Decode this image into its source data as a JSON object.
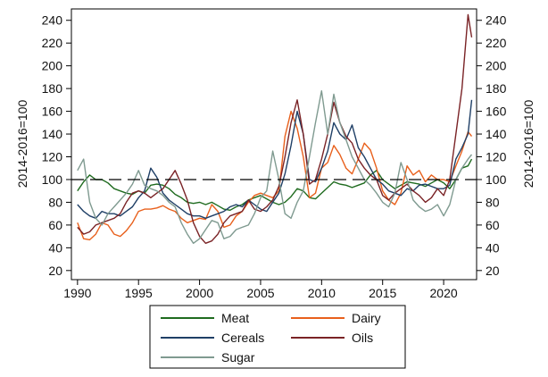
{
  "chart_data": {
    "type": "line",
    "ylabel_left": "2014-2016=100",
    "ylabel_right": "2014-2016=100",
    "xlim": [
      1989.5,
      2022.7
    ],
    "ylim": [
      12,
      250
    ],
    "x_ticks": [
      1990,
      1995,
      2000,
      2005,
      2010,
      2015,
      2020
    ],
    "x_tick_labels": [
      "1990",
      "1995",
      "2000",
      "2005",
      "2010",
      "2015",
      "2020"
    ],
    "y_ticks": [
      20,
      40,
      60,
      80,
      100,
      120,
      140,
      160,
      180,
      200,
      220,
      240
    ],
    "y_tick_labels": [
      "20",
      "40",
      "60",
      "80",
      "100",
      "120",
      "140",
      "160",
      "180",
      "200",
      "220",
      "240"
    ],
    "reference_line": {
      "y": 100,
      "style": "dashed"
    },
    "grid": false,
    "legend_position": "bottom",
    "series": [
      {
        "name": "Meat",
        "color": "#1f6b1f",
        "x": [
          1990,
          1990.5,
          1991,
          1991.5,
          1992,
          1992.5,
          1993,
          1993.5,
          1994,
          1994.5,
          1995,
          1995.5,
          1996,
          1996.5,
          1997,
          1997.5,
          1998,
          1998.5,
          1999,
          1999.5,
          2000,
          2000.5,
          2001,
          2001.5,
          2002,
          2002.5,
          2003,
          2003.5,
          2004,
          2004.5,
          2005,
          2005.5,
          2006,
          2006.5,
          2007,
          2007.5,
          2008,
          2008.5,
          2009,
          2009.5,
          2010,
          2010.5,
          2011,
          2011.5,
          2012,
          2012.5,
          2013,
          2013.5,
          2014,
          2014.5,
          2015,
          2015.5,
          2016,
          2016.5,
          2017,
          2017.5,
          2018,
          2018.5,
          2019,
          2019.5,
          2020,
          2020.5,
          2021,
          2021.5,
          2022,
          2022.3
        ],
        "y": [
          90,
          98,
          104,
          100,
          100,
          97,
          92,
          90,
          88,
          87,
          90,
          88,
          95,
          96,
          95,
          92,
          87,
          84,
          80,
          79,
          80,
          78,
          80,
          77,
          74,
          73,
          76,
          78,
          82,
          84,
          86,
          83,
          80,
          78,
          80,
          85,
          92,
          90,
          84,
          83,
          88,
          93,
          98,
          96,
          95,
          93,
          95,
          97,
          104,
          108,
          100,
          96,
          92,
          95,
          98,
          97,
          96,
          94,
          97,
          100,
          97,
          92,
          100,
          110,
          112,
          118
        ]
      },
      {
        "name": "Dairy",
        "color": "#e8601c",
        "x": [
          1990,
          1990.5,
          1991,
          1991.5,
          1992,
          1992.5,
          1993,
          1993.5,
          1994,
          1994.5,
          1995,
          1995.5,
          1996,
          1996.5,
          1997,
          1997.5,
          1998,
          1998.5,
          1999,
          1999.5,
          2000,
          2000.5,
          2001,
          2001.5,
          2002,
          2002.5,
          2003,
          2003.5,
          2004,
          2004.5,
          2005,
          2005.5,
          2006,
          2006.5,
          2007,
          2007.5,
          2008,
          2008.5,
          2009,
          2009.5,
          2010,
          2010.5,
          2011,
          2011.5,
          2012,
          2012.5,
          2013,
          2013.5,
          2014,
          2014.5,
          2015,
          2015.5,
          2016,
          2016.5,
          2017,
          2017.5,
          2018,
          2018.5,
          2019,
          2019.5,
          2020,
          2020.5,
          2021,
          2021.5,
          2022,
          2022.3
        ],
        "y": [
          62,
          48,
          47,
          52,
          62,
          60,
          52,
          50,
          55,
          62,
          72,
          74,
          74,
          75,
          77,
          74,
          72,
          66,
          62,
          64,
          66,
          65,
          78,
          72,
          58,
          60,
          68,
          72,
          80,
          86,
          88,
          86,
          84,
          90,
          138,
          160,
          145,
          120,
          84,
          88,
          110,
          115,
          130,
          122,
          110,
          105,
          118,
          132,
          126,
          110,
          90,
          82,
          78,
          88,
          112,
          104,
          108,
          98,
          104,
          100,
          100,
          98,
          112,
          125,
          142,
          138
        ]
      },
      {
        "name": "Cereals",
        "color": "#1f3f66",
        "x": [
          1990,
          1990.5,
          1991,
          1991.5,
          1992,
          1992.5,
          1993,
          1993.5,
          1994,
          1994.5,
          1995,
          1995.5,
          1996,
          1996.5,
          1997,
          1997.5,
          1998,
          1998.5,
          1999,
          1999.5,
          2000,
          2000.5,
          2001,
          2001.5,
          2002,
          2002.5,
          2003,
          2003.5,
          2004,
          2004.5,
          2005,
          2005.5,
          2006,
          2006.5,
          2007,
          2007.5,
          2008,
          2008.5,
          2009,
          2009.5,
          2010,
          2010.5,
          2011,
          2011.5,
          2012,
          2012.5,
          2013,
          2013.5,
          2014,
          2014.5,
          2015,
          2015.5,
          2016,
          2016.5,
          2017,
          2017.5,
          2018,
          2018.5,
          2019,
          2019.5,
          2020,
          2020.5,
          2021,
          2021.5,
          2022,
          2022.3
        ],
        "y": [
          78,
          72,
          68,
          66,
          72,
          70,
          70,
          68,
          72,
          76,
          84,
          90,
          110,
          102,
          88,
          82,
          78,
          74,
          70,
          68,
          68,
          66,
          68,
          70,
          72,
          76,
          78,
          76,
          82,
          78,
          74,
          72,
          80,
          88,
          105,
          130,
          160,
          140,
          100,
          98,
          110,
          125,
          150,
          140,
          135,
          148,
          128,
          120,
          110,
          100,
          96,
          90,
          88,
          86,
          92,
          90,
          95,
          96,
          94,
          92,
          92,
          95,
          118,
          128,
          140,
          170
        ]
      },
      {
        "name": "Oils",
        "color": "#7a2326",
        "x": [
          1990,
          1990.5,
          1991,
          1991.5,
          1992,
          1992.5,
          1993,
          1993.5,
          1994,
          1994.5,
          1995,
          1995.5,
          1996,
          1996.5,
          1997,
          1997.5,
          1998,
          1998.5,
          1999,
          1999.5,
          2000,
          2000.5,
          2001,
          2001.5,
          2002,
          2002.5,
          2003,
          2003.5,
          2004,
          2004.5,
          2005,
          2005.5,
          2006,
          2006.5,
          2007,
          2007.5,
          2008,
          2008.5,
          2009,
          2009.5,
          2010,
          2010.5,
          2011,
          2011.5,
          2012,
          2012.5,
          2013,
          2013.5,
          2014,
          2014.5,
          2015,
          2015.5,
          2016,
          2016.5,
          2017,
          2017.5,
          2018,
          2018.5,
          2019,
          2019.5,
          2020,
          2020.5,
          2021,
          2021.5,
          2022,
          2022.3
        ],
        "y": [
          58,
          52,
          54,
          60,
          62,
          64,
          66,
          70,
          80,
          88,
          90,
          88,
          84,
          88,
          92,
          100,
          108,
          96,
          82,
          62,
          50,
          44,
          46,
          52,
          62,
          68,
          70,
          72,
          82,
          74,
          72,
          76,
          82,
          94,
          120,
          150,
          170,
          140,
          96,
          100,
          118,
          140,
          168,
          150,
          138,
          132,
          118,
          110,
          104,
          100,
          86,
          82,
          88,
          92,
          96,
          90,
          86,
          80,
          84,
          92,
          86,
          100,
          140,
          180,
          245,
          225
        ]
      },
      {
        "name": "Sugar",
        "color": "#7f9a90",
        "x": [
          1990,
          1990.5,
          1991,
          1991.5,
          1992,
          1992.5,
          1993,
          1993.5,
          1994,
          1994.5,
          1995,
          1995.5,
          1996,
          1996.5,
          1997,
          1997.5,
          1998,
          1998.5,
          1999,
          1999.5,
          2000,
          2000.5,
          2001,
          2001.5,
          2002,
          2002.5,
          2003,
          2003.5,
          2004,
          2004.5,
          2005,
          2005.5,
          2006,
          2006.5,
          2007,
          2007.5,
          2008,
          2008.5,
          2009,
          2009.5,
          2010,
          2010.5,
          2011,
          2011.5,
          2012,
          2012.5,
          2013,
          2013.5,
          2014,
          2014.5,
          2015,
          2015.5,
          2016,
          2016.5,
          2017,
          2017.5,
          2018,
          2018.5,
          2019,
          2019.5,
          2020,
          2020.5,
          2021,
          2021.5,
          2022,
          2022.3
        ],
        "y": [
          108,
          118,
          80,
          66,
          60,
          70,
          76,
          82,
          88,
          96,
          108,
          95,
          92,
          90,
          86,
          80,
          76,
          62,
          52,
          44,
          48,
          56,
          64,
          62,
          48,
          50,
          56,
          58,
          60,
          70,
          84,
          90,
          125,
          100,
          70,
          66,
          80,
          90,
          120,
          150,
          178,
          140,
          175,
          150,
          135,
          120,
          110,
          100,
          95,
          88,
          80,
          76,
          88,
          115,
          100,
          82,
          76,
          72,
          74,
          78,
          68,
          78,
          100,
          110,
          118,
          122
        ]
      }
    ]
  },
  "legend": {
    "items": [
      {
        "label": "Meat",
        "color": "#1f6b1f"
      },
      {
        "label": "Dairy",
        "color": "#e8601c"
      },
      {
        "label": "Cereals",
        "color": "#1f3f66"
      },
      {
        "label": "Oils",
        "color": "#7a2326"
      },
      {
        "label": "Sugar",
        "color": "#7f9a90"
      }
    ]
  }
}
